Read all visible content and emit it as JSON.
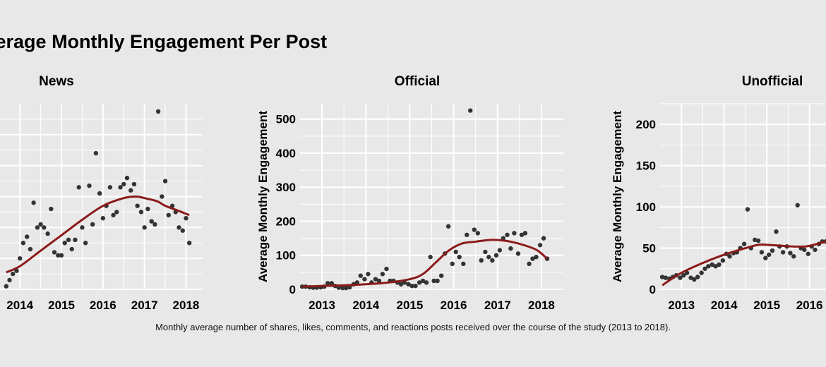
{
  "title": "Average Monthly Engagement Per Post",
  "caption": "Monthly average number of shares, likes, comments, and reactions posts received over the course of the study (2013 to 2018).",
  "colors": {
    "background": "#e8e8e8",
    "points": "#333333",
    "trend": "#8b1a1a",
    "grid": "#ffffff"
  },
  "chart_data": [
    {
      "type": "scatter",
      "title": "News",
      "ylabel": "",
      "xlim": [
        2012.5,
        2018.4
      ],
      "ylim": [
        0,
        600
      ],
      "xticks": [
        2014,
        2015,
        2016,
        2017,
        2018
      ],
      "xtick_labels": [
        "2014",
        "2015",
        "2016",
        "2017",
        "2018"
      ],
      "yticks": [
        0,
        100,
        200,
        300,
        400,
        500
      ],
      "ytick_labels": [
        "",
        "",
        "",
        "",
        "",
        ""
      ],
      "points": {
        "x": [
          2013.67,
          2013.75,
          2013.83,
          2013.92,
          2014.0,
          2014.08,
          2014.17,
          2014.25,
          2014.33,
          2014.42,
          2014.5,
          2014.58,
          2014.67,
          2014.75,
          2014.83,
          2014.92,
          2015.0,
          2015.08,
          2015.17,
          2015.25,
          2015.33,
          2015.42,
          2015.5,
          2015.58,
          2015.67,
          2015.75,
          2015.83,
          2015.92,
          2016.0,
          2016.08,
          2016.17,
          2016.25,
          2016.33,
          2016.42,
          2016.5,
          2016.58,
          2016.67,
          2016.75,
          2016.83,
          2016.92,
          2017.0,
          2017.08,
          2017.17,
          2017.25,
          2017.33,
          2017.42,
          2017.5,
          2017.58,
          2017.67,
          2017.75,
          2017.83,
          2017.92,
          2018.0,
          2018.08
        ],
        "y": [
          10,
          30,
          50,
          60,
          100,
          150,
          170,
          130,
          280,
          200,
          210,
          200,
          180,
          260,
          120,
          110,
          110,
          150,
          160,
          130,
          160,
          330,
          200,
          150,
          335,
          210,
          440,
          310,
          230,
          270,
          330,
          240,
          250,
          330,
          340,
          360,
          320,
          340,
          270,
          250,
          200,
          260,
          220,
          210,
          575,
          300,
          350,
          240,
          270,
          250,
          200,
          190,
          230,
          150
        ]
      },
      "trend": {
        "x": [
          2013.67,
          2014.0,
          2014.5,
          2015.0,
          2015.5,
          2016.0,
          2016.5,
          2016.8,
          2017.0,
          2017.3,
          2017.5,
          2017.8,
          2018.08
        ],
        "y": [
          55,
          75,
          125,
          175,
          225,
          270,
          295,
          300,
          295,
          285,
          270,
          255,
          240
        ]
      }
    },
    {
      "type": "scatter",
      "title": "Official",
      "ylabel": "Average Monthly Engagement",
      "xlim": [
        2012.5,
        2018.5
      ],
      "ylim": [
        0,
        545
      ],
      "xticks": [
        2013,
        2014,
        2015,
        2016,
        2017,
        2018
      ],
      "xtick_labels": [
        "2013",
        "2014",
        "2015",
        "2016",
        "2017",
        "2018"
      ],
      "yticks": [
        0,
        100,
        200,
        300,
        400,
        500
      ],
      "ytick_labels": [
        "0",
        "100",
        "200",
        "300",
        "400",
        "500"
      ],
      "points": {
        "x": [
          2012.55,
          2012.63,
          2012.72,
          2012.8,
          2012.88,
          2012.97,
          2013.05,
          2013.13,
          2013.22,
          2013.3,
          2013.38,
          2013.47,
          2013.55,
          2013.63,
          2013.72,
          2013.8,
          2013.88,
          2013.97,
          2014.05,
          2014.13,
          2014.22,
          2014.3,
          2014.38,
          2014.47,
          2014.55,
          2014.63,
          2014.72,
          2014.8,
          2014.88,
          2014.97,
          2015.05,
          2015.13,
          2015.22,
          2015.3,
          2015.38,
          2015.47,
          2015.55,
          2015.63,
          2015.72,
          2015.8,
          2015.88,
          2015.97,
          2016.05,
          2016.13,
          2016.22,
          2016.3,
          2016.38,
          2016.47,
          2016.55,
          2016.63,
          2016.72,
          2016.8,
          2016.88,
          2016.97,
          2017.05,
          2017.13,
          2017.22,
          2017.3,
          2017.38,
          2017.47,
          2017.55,
          2017.63,
          2017.72,
          2017.8,
          2017.88,
          2017.97,
          2018.05,
          2018.13
        ],
        "y": [
          8,
          8,
          6,
          5,
          5,
          6,
          8,
          18,
          18,
          10,
          5,
          4,
          4,
          6,
          15,
          20,
          40,
          30,
          45,
          20,
          30,
          25,
          45,
          60,
          25,
          25,
          20,
          15,
          20,
          15,
          10,
          10,
          20,
          25,
          20,
          95,
          25,
          25,
          40,
          105,
          185,
          75,
          110,
          95,
          75,
          160,
          525,
          175,
          165,
          85,
          110,
          95,
          85,
          100,
          115,
          150,
          160,
          120,
          165,
          105,
          160,
          165,
          75,
          90,
          95,
          130,
          150,
          90
        ]
      },
      "trend": {
        "x": [
          2012.55,
          2013.0,
          2013.5,
          2014.0,
          2014.5,
          2015.0,
          2015.3,
          2015.6,
          2015.9,
          2016.2,
          2016.5,
          2016.8,
          2017.0,
          2017.3,
          2017.6,
          2017.9,
          2018.13
        ],
        "y": [
          8,
          10,
          12,
          15,
          20,
          30,
          45,
          80,
          115,
          135,
          140,
          145,
          145,
          140,
          130,
          115,
          90
        ]
      }
    },
    {
      "type": "scatter",
      "title": "Unofficial",
      "ylabel": "Average Monthly Engagement",
      "xlim": [
        2012.5,
        2016.85
      ],
      "ylim": [
        0,
        225
      ],
      "xticks": [
        2013,
        2014,
        2015,
        2016
      ],
      "xtick_labels": [
        "2013",
        "2014",
        "2015",
        "2016"
      ],
      "yticks": [
        0,
        50,
        100,
        150,
        200
      ],
      "ytick_labels": [
        "0",
        "50",
        "100",
        "150",
        "200"
      ],
      "points": {
        "x": [
          2012.55,
          2012.63,
          2012.72,
          2012.8,
          2012.88,
          2012.97,
          2013.05,
          2013.13,
          2013.22,
          2013.3,
          2013.38,
          2013.47,
          2013.55,
          2013.63,
          2013.72,
          2013.8,
          2013.88,
          2013.97,
          2014.05,
          2014.13,
          2014.22,
          2014.3,
          2014.38,
          2014.47,
          2014.55,
          2014.63,
          2014.72,
          2014.8,
          2014.88,
          2014.97,
          2015.05,
          2015.13,
          2015.22,
          2015.3,
          2015.38,
          2015.47,
          2015.55,
          2015.63,
          2015.72,
          2015.8,
          2015.88,
          2015.97,
          2016.05,
          2016.13,
          2016.22,
          2016.3,
          2016.38
        ],
        "y": [
          15,
          14,
          13,
          15,
          17,
          14,
          17,
          20,
          14,
          12,
          15,
          20,
          25,
          28,
          30,
          28,
          30,
          35,
          43,
          40,
          44,
          45,
          50,
          55,
          97,
          50,
          60,
          59,
          45,
          38,
          42,
          47,
          70,
          52,
          45,
          52,
          44,
          40,
          102,
          50,
          48,
          43,
          52,
          48,
          55,
          58,
          58
        ]
      },
      "trend": {
        "x": [
          2012.55,
          2013.0,
          2013.5,
          2014.0,
          2014.5,
          2014.8,
          2015.0,
          2015.3,
          2015.6,
          2015.9,
          2016.1,
          2016.38
        ],
        "y": [
          5,
          20,
          32,
          42,
          50,
          54,
          54,
          53,
          52,
          52,
          54,
          58
        ]
      }
    }
  ]
}
